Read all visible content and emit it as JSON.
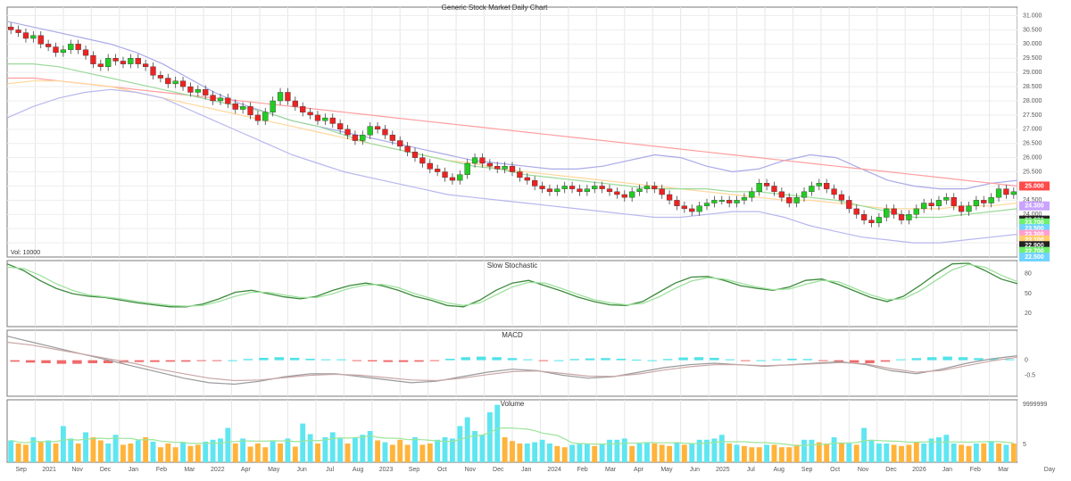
{
  "chart_data": [
    {
      "type": "candlestick",
      "panel": "price",
      "title": "Generic Stock Market Daily Chart",
      "y_axis_ticks": [
        "31.000",
        "30.500",
        "30.000",
        "29.500",
        "29.000",
        "28.500",
        "28.000",
        "27.500",
        "27.000",
        "26.500",
        "26.000",
        "25.500",
        "25.000",
        "24.500",
        "24.000",
        "23.500",
        "23.000"
      ],
      "ylim": [
        22.5,
        31.3
      ],
      "highlight_labels": [
        {
          "text": "25.000",
          "value": 25.0,
          "color": "#ff4a4a"
        },
        {
          "text": "24.300",
          "value": 24.3,
          "color": "#c9a3ff"
        },
        {
          "text": "23.800",
          "value": 23.8,
          "color": "#222222"
        },
        {
          "text": "23.700",
          "value": 23.7,
          "color": "#6ef06e"
        },
        {
          "text": "23.500",
          "value": 23.5,
          "color": "#6fd3ff"
        },
        {
          "text": "23.300",
          "value": 23.3,
          "color": "#ff9fcf"
        },
        {
          "text": "23.100",
          "value": 23.1,
          "color": "#ffcf6f"
        },
        {
          "text": "22.900",
          "value": 22.9,
          "color": "#222222"
        },
        {
          "text": "22.700",
          "value": 22.7,
          "color": "#6ef06e"
        },
        {
          "text": "22.500",
          "value": 22.5,
          "color": "#6fd3ff"
        }
      ],
      "indicator_label": "Vol: 10000",
      "up_color": "#22cc22",
      "down_color": "#ee2222",
      "closes": [
        30.5,
        30.4,
        30.2,
        30.3,
        30.0,
        29.9,
        29.7,
        29.8,
        30.0,
        29.8,
        29.6,
        29.3,
        29.2,
        29.5,
        29.4,
        29.3,
        29.5,
        29.3,
        29.2,
        28.9,
        28.8,
        28.6,
        28.7,
        28.5,
        28.3,
        28.4,
        28.2,
        28.0,
        28.1,
        27.9,
        27.7,
        27.8,
        27.5,
        27.3,
        27.6,
        28.0,
        28.3,
        28.0,
        27.8,
        27.6,
        27.5,
        27.3,
        27.4,
        27.2,
        27.0,
        26.8,
        26.6,
        26.8,
        27.1,
        27.0,
        26.8,
        26.6,
        26.4,
        26.2,
        26.0,
        25.8,
        25.6,
        25.5,
        25.3,
        25.2,
        25.4,
        25.8,
        26.0,
        25.8,
        25.7,
        25.6,
        25.7,
        25.5,
        25.3,
        25.2,
        25.0,
        24.9,
        24.8,
        24.9,
        25.0,
        24.9,
        24.8,
        24.9,
        25.0,
        24.9,
        24.8,
        24.7,
        24.6,
        24.8,
        24.9,
        25.0,
        24.9,
        24.7,
        24.5,
        24.3,
        24.2,
        24.1,
        24.3,
        24.4,
        24.5,
        24.5,
        24.4,
        24.5,
        24.6,
        24.8,
        25.1,
        25.0,
        24.8,
        24.6,
        24.4,
        24.6,
        24.8,
        25.0,
        25.1,
        24.9,
        24.7,
        24.5,
        24.2,
        24.0,
        23.8,
        23.7,
        23.9,
        24.2,
        24.0,
        23.8,
        24.0,
        24.2,
        24.4,
        24.3,
        24.5,
        24.6,
        24.3,
        24.1,
        24.3,
        24.5,
        24.4,
        24.6,
        24.9,
        24.7,
        24.8
      ],
      "ma_lines": [
        {
          "color": "#a9a9e8",
          "values": [
            30.8,
            30.6,
            30.4,
            30.2,
            30.0,
            29.7,
            29.3,
            28.8,
            28.3,
            27.9,
            27.6,
            27.3,
            27.1,
            26.9,
            26.7,
            26.5,
            26.3,
            26.1,
            25.9,
            25.8,
            25.7,
            25.6,
            25.6,
            25.7,
            25.9,
            26.1,
            26.0,
            25.7,
            25.5,
            25.6,
            25.9,
            26.1,
            26.0,
            25.6,
            25.2,
            25.0,
            24.9,
            24.9,
            25.1,
            25.2
          ]
        },
        {
          "color": "#ff9e9e",
          "values": [
            28.8,
            28.8,
            28.7,
            28.6,
            28.5,
            28.4,
            28.3,
            28.2,
            28.1,
            28.0,
            27.9,
            27.8,
            27.7,
            27.6,
            27.5,
            27.4,
            27.3,
            27.2,
            27.1,
            27.0,
            26.9,
            26.8,
            26.7,
            26.6,
            26.5,
            26.4,
            26.3,
            26.2,
            26.1,
            26.0,
            25.9,
            25.8,
            25.7,
            25.6,
            25.5,
            25.4,
            25.3,
            25.2,
            25.1,
            25.0
          ]
        },
        {
          "color": "#ffd79a",
          "values": [
            28.6,
            28.7,
            28.7,
            28.6,
            28.5,
            28.3,
            28.1,
            27.9,
            27.7,
            27.5,
            27.3,
            27.1,
            26.9,
            26.7,
            26.5,
            26.3,
            26.1,
            25.9,
            25.8,
            25.6,
            25.5,
            25.4,
            25.3,
            25.2,
            25.1,
            25.0,
            24.9,
            24.8,
            24.7,
            24.6,
            24.5,
            24.5,
            24.4,
            24.3,
            24.2,
            24.2,
            24.2,
            24.3,
            24.3,
            24.4
          ]
        },
        {
          "color": "#9ad99a",
          "values": [
            29.3,
            29.3,
            29.2,
            29.0,
            28.8,
            28.6,
            28.4,
            28.2,
            28.0,
            27.8,
            27.6,
            27.3,
            27.1,
            26.8,
            26.5,
            26.3,
            26.1,
            25.9,
            25.7,
            25.6,
            25.4,
            25.3,
            25.2,
            25.1,
            25.0,
            24.9,
            24.9,
            24.9,
            24.8,
            24.8,
            24.7,
            24.6,
            24.5,
            24.3,
            24.1,
            23.9,
            23.9,
            24.0,
            24.1,
            24.2
          ]
        },
        {
          "color": "#b7b7ee",
          "values": [
            27.4,
            27.8,
            28.1,
            28.3,
            28.4,
            28.3,
            28.1,
            27.7,
            27.3,
            26.9,
            26.5,
            26.1,
            25.8,
            25.5,
            25.3,
            25.1,
            24.9,
            24.7,
            24.6,
            24.5,
            24.4,
            24.3,
            24.2,
            24.1,
            24.0,
            23.9,
            23.9,
            24.0,
            24.1,
            24.1,
            23.9,
            23.6,
            23.4,
            23.2,
            23.1,
            23.0,
            23.0,
            23.1,
            23.2,
            23.3
          ]
        }
      ]
    },
    {
      "type": "line",
      "panel": "oscillator",
      "title": "Slow Stochastic",
      "value_labels": [
        {
          "text": "80",
          "value": 80
        },
        {
          "text": "50",
          "value": 50
        },
        {
          "text": "20",
          "value": 20
        }
      ],
      "ylim": [
        0,
        100
      ],
      "series": [
        {
          "color": "#3c8a3c",
          "values": [
            95,
            85,
            70,
            58,
            50,
            46,
            44,
            40,
            36,
            33,
            30,
            30,
            34,
            42,
            52,
            55,
            50,
            45,
            42,
            46,
            55,
            62,
            66,
            62,
            55,
            46,
            40,
            32,
            30,
            40,
            55,
            66,
            70,
            62,
            54,
            45,
            38,
            33,
            32,
            38,
            52,
            66,
            75,
            76,
            70,
            62,
            58,
            55,
            60,
            70,
            72,
            64,
            54,
            44,
            38,
            46,
            62,
            80,
            95,
            96,
            85,
            72,
            65
          ]
        },
        {
          "color": "#9ee09e",
          "values": [
            90,
            88,
            78,
            65,
            55,
            48,
            45,
            42,
            38,
            35,
            32,
            31,
            32,
            38,
            46,
            52,
            52,
            48,
            44,
            44,
            50,
            58,
            63,
            64,
            59,
            50,
            43,
            36,
            32,
            36,
            48,
            60,
            67,
            66,
            58,
            49,
            41,
            36,
            33,
            35,
            45,
            58,
            69,
            74,
            72,
            66,
            60,
            56,
            57,
            64,
            70,
            68,
            58,
            48,
            41,
            42,
            54,
            70,
            86,
            94,
            90,
            78,
            68
          ]
        }
      ]
    },
    {
      "type": "bar",
      "panel": "momentum",
      "title": "MACD",
      "value_labels": [
        {
          "text": "0",
          "value": 0
        },
        {
          "text": "-0.5",
          "value": -0.5
        }
      ],
      "ylim": [
        -1.2,
        1.0
      ],
      "histogram_colors": {
        "positive": "#4fe3e8",
        "negative": "#f06a6a"
      },
      "line_colors": [
        "#9a9a9a",
        "#c9a6a6"
      ],
      "histogram": [
        -0.05,
        -0.08,
        -0.1,
        -0.12,
        -0.12,
        -0.1,
        -0.1,
        -0.08,
        -0.06,
        -0.06,
        -0.05,
        -0.05,
        -0.03,
        -0.02,
        0.0,
        0.04,
        0.08,
        0.1,
        0.08,
        0.05,
        0.03,
        0.03,
        -0.02,
        -0.04,
        -0.06,
        -0.06,
        -0.05,
        -0.03,
        0.05,
        0.1,
        0.12,
        0.1,
        0.07,
        0.03,
        -0.02,
        0.0,
        0.04,
        0.06,
        0.07,
        0.05,
        0.02,
        0.0,
        0.04,
        0.09,
        0.1,
        0.08,
        0.03,
        -0.02,
        0.0,
        0.03,
        0.05,
        0.04,
        -0.03,
        -0.06,
        -0.08,
        -0.1,
        -0.05,
        0.03,
        0.07,
        0.1,
        0.12,
        0.1,
        0.07,
        0.04,
        0.03
      ],
      "macd_line": [
        0.8,
        0.6,
        0.4,
        0.2,
        0.0,
        -0.2,
        -0.4,
        -0.6,
        -0.75,
        -0.8,
        -0.7,
        -0.55,
        -0.45,
        -0.45,
        -0.55,
        -0.65,
        -0.75,
        -0.7,
        -0.55,
        -0.4,
        -0.3,
        -0.35,
        -0.5,
        -0.6,
        -0.55,
        -0.4,
        -0.25,
        -0.15,
        -0.1,
        -0.15,
        -0.2,
        -0.15,
        -0.1,
        -0.05,
        -0.15,
        -0.35,
        -0.45,
        -0.3,
        -0.1,
        0.05,
        0.15
      ],
      "signal_line": [
        0.6,
        0.5,
        0.35,
        0.2,
        0.05,
        -0.1,
        -0.3,
        -0.45,
        -0.6,
        -0.68,
        -0.66,
        -0.58,
        -0.5,
        -0.47,
        -0.5,
        -0.58,
        -0.66,
        -0.68,
        -0.6,
        -0.48,
        -0.38,
        -0.36,
        -0.44,
        -0.53,
        -0.54,
        -0.46,
        -0.33,
        -0.22,
        -0.15,
        -0.15,
        -0.18,
        -0.16,
        -0.12,
        -0.08,
        -0.12,
        -0.28,
        -0.4,
        -0.34,
        -0.18,
        -0.02,
        0.1
      ]
    },
    {
      "type": "bar",
      "panel": "volume",
      "title": "Volume",
      "value_labels": [
        {
          "text": "9999999",
          "value": 9999999
        },
        {
          "text": "5",
          "value": 5
        }
      ],
      "ylim": [
        0,
        100
      ],
      "up_color": "#5fe6f0",
      "down_color": "#ffb43c",
      "average_color": "#9be59b",
      "values": [
        35,
        30,
        28,
        40,
        32,
        35,
        30,
        58,
        38,
        30,
        48,
        40,
        35,
        30,
        44,
        28,
        30,
        35,
        40,
        33,
        24,
        30,
        24,
        32,
        26,
        28,
        33,
        36,
        38,
        55,
        30,
        38,
        25,
        30,
        24,
        35,
        30,
        38,
        25,
        62,
        45,
        30,
        40,
        48,
        38,
        30,
        40,
        44,
        50,
        35,
        32,
        28,
        36,
        28,
        40,
        28,
        30,
        36,
        40,
        38,
        58,
        72,
        50,
        44,
        80,
        92,
        40,
        34,
        30,
        30,
        32,
        36,
        30,
        26,
        24,
        28,
        30,
        30,
        26,
        30,
        36,
        36,
        38,
        26,
        30,
        32,
        30,
        28,
        26,
        32,
        28,
        30,
        36,
        36,
        38,
        44,
        30,
        28,
        26,
        24,
        24,
        28,
        28,
        24,
        24,
        28,
        36,
        36,
        32,
        30,
        40,
        30,
        30,
        28,
        55,
        36,
        30,
        30,
        28,
        26,
        28,
        32,
        30,
        38,
        40,
        44,
        30,
        28,
        26,
        30,
        30,
        34,
        30,
        28,
        30
      ],
      "up_flags": [
        1,
        0,
        0,
        1,
        0,
        1,
        0,
        1,
        1,
        0,
        1,
        0,
        0,
        1,
        1,
        0,
        0,
        1,
        0,
        1,
        0,
        0,
        0,
        1,
        0,
        0,
        1,
        1,
        1,
        1,
        0,
        1,
        0,
        0,
        0,
        1,
        0,
        1,
        0,
        1,
        1,
        0,
        1,
        1,
        1,
        0,
        1,
        1,
        1,
        0,
        1,
        0,
        0,
        0,
        1,
        0,
        0,
        1,
        1,
        1,
        1,
        1,
        1,
        1,
        1,
        1,
        0,
        0,
        0,
        1,
        1,
        1,
        1,
        0,
        0,
        1,
        1,
        1,
        0,
        1,
        1,
        1,
        1,
        0,
        1,
        1,
        0,
        0,
        0,
        1,
        0,
        1,
        1,
        1,
        1,
        1,
        0,
        1,
        0,
        0,
        0,
        1,
        0,
        0,
        0,
        0,
        1,
        1,
        0,
        0,
        1,
        0,
        1,
        0,
        1,
        1,
        1,
        1,
        0,
        0,
        0,
        0,
        1,
        1,
        1,
        1,
        1,
        0,
        0,
        1,
        0,
        1,
        0,
        1,
        0
      ]
    }
  ],
  "x_axis": {
    "tick_labels": [
      "Sep",
      "2021",
      "Nov",
      "Dec",
      "Jan",
      "Feb",
      "Mar",
      "2022",
      "Apr",
      "May",
      "Jun",
      "Jul",
      "Aug",
      "2023",
      "Sep",
      "Oct",
      "Nov",
      "Dec",
      "Jan",
      "2024",
      "Feb",
      "Mar",
      "Apr",
      "May",
      "Jun",
      "2025",
      "Jul",
      "Aug",
      "Sep",
      "Oct",
      "Nov",
      "Dec",
      "2026",
      "Jan",
      "Feb",
      "Mar"
    ],
    "end_label": "Day"
  }
}
